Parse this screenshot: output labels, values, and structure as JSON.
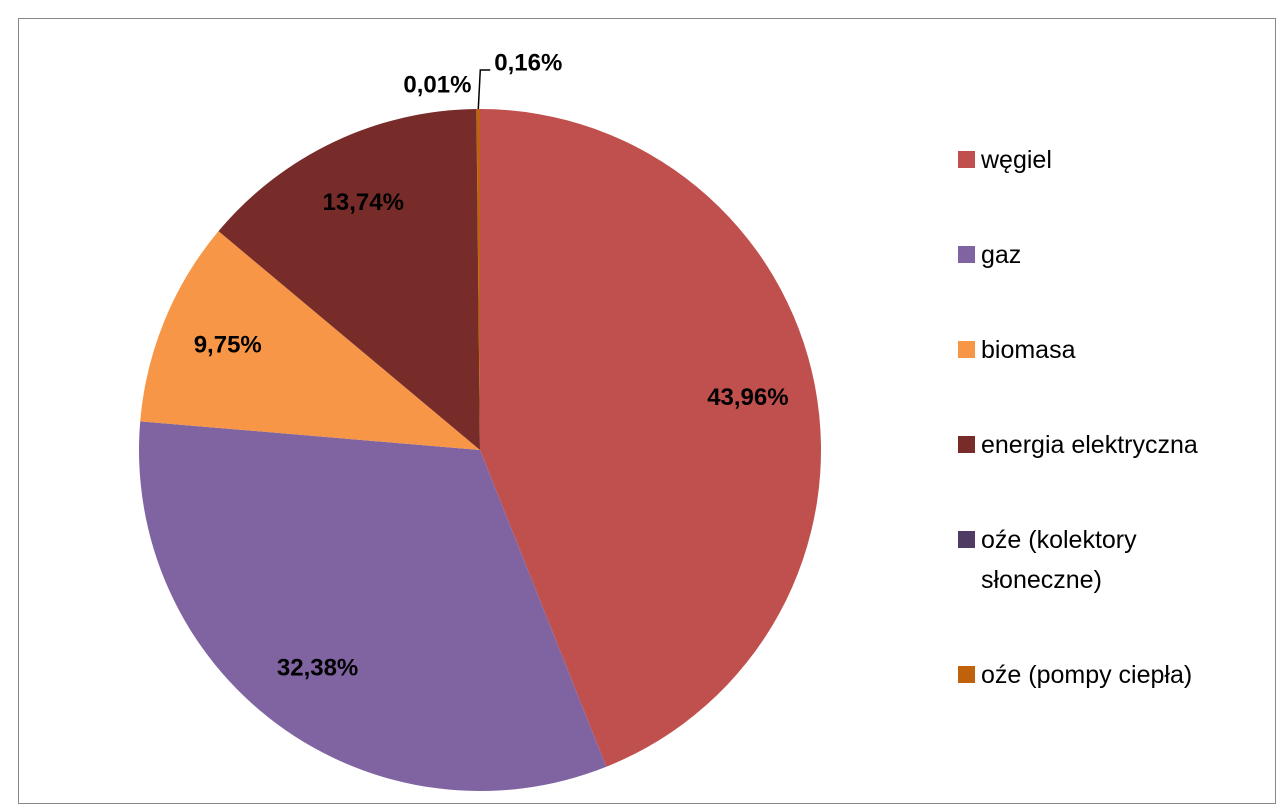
{
  "chart_data": {
    "type": "pie",
    "categories": [
      "węgiel",
      "gaz",
      "biomasa",
      "energia elektryczna",
      "oźe (kolektory słoneczne)",
      "oźe (pompy ciepła)"
    ],
    "values": [
      43.96,
      32.38,
      9.75,
      13.74,
      0.01,
      0.16
    ],
    "value_labels": [
      "43,96%",
      "32,38%",
      "9,75%",
      "13,74%",
      "0,01%",
      "0,16%"
    ],
    "colors": [
      "#c0504d",
      "#8064a2",
      "#f79646",
      "#772c2a",
      "#4f3b63",
      "#c0620c"
    ],
    "legend": "right"
  }
}
